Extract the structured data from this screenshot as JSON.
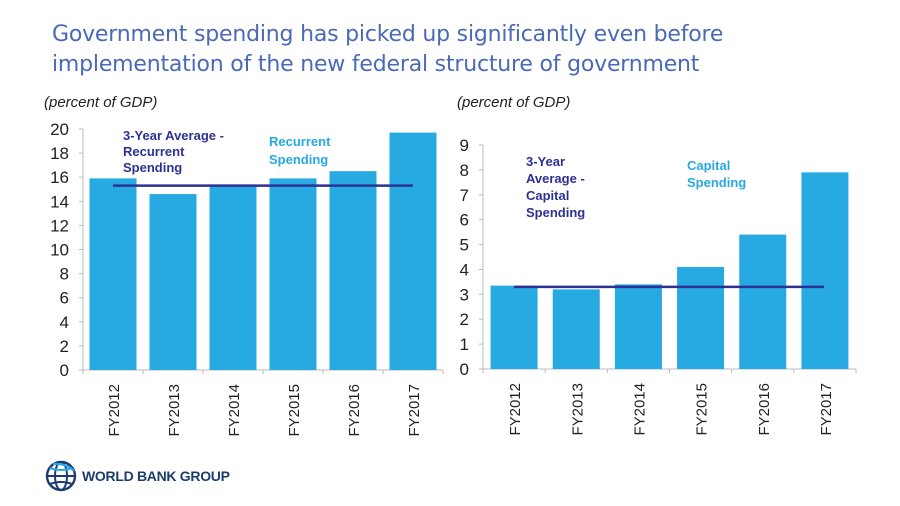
{
  "title": {
    "line1": "Government spending has picked up significantly even before",
    "line2": "implementation of the new federal structure of government"
  },
  "colors": {
    "bar": "#27a9e1",
    "average_line": "#2e3192",
    "title": "#4a69b7",
    "axis": "#bbbbbb"
  },
  "logo": {
    "icon": "globe-icon",
    "text": "WORLD BANK GROUP"
  },
  "chart_data": [
    {
      "type": "bar",
      "title": "",
      "unit_label": "(percent of GDP)",
      "xlabel": "",
      "ylabel": "",
      "categories": [
        "FY2012",
        "FY2013",
        "FY2014",
        "FY2015",
        "FY2016",
        "FY2017"
      ],
      "series": [
        {
          "name": "Recurrent Spending",
          "values": [
            15.9,
            14.6,
            15.4,
            15.9,
            16.5,
            19.7
          ]
        }
      ],
      "reference_lines": [
        {
          "name": "3-Year Average - Recurrent Spending",
          "value": 15.3,
          "label_lines": [
            "3-Year Average -",
            "Recurrent",
            "Spending"
          ]
        }
      ],
      "annotations": [
        {
          "text_lines": [
            "Recurrent",
            "Spending"
          ],
          "refers_to": "series"
        }
      ],
      "ylim": [
        0,
        20
      ],
      "yticks": [
        "0",
        "2",
        "4",
        "6",
        "8",
        "10",
        "12",
        "14",
        "16",
        "18",
        "20"
      ],
      "grid": false,
      "legend": "none"
    },
    {
      "type": "bar",
      "title": "",
      "unit_label": "(percent of GDP)",
      "xlabel": "",
      "ylabel": "",
      "categories": [
        "FY2012",
        "FY2013",
        "FY2014",
        "FY2015",
        "FY2016",
        "FY2017"
      ],
      "series": [
        {
          "name": "Capital Spending",
          "values": [
            3.35,
            3.2,
            3.4,
            4.1,
            5.4,
            7.9
          ]
        }
      ],
      "reference_lines": [
        {
          "name": "3-Year Average - Capital Spending",
          "value": 3.3,
          "label_lines": [
            "3-Year",
            "Average -",
            "Capital",
            "Spending"
          ]
        }
      ],
      "annotations": [
        {
          "text_lines": [
            "Capital",
            "Spending"
          ],
          "refers_to": "series"
        }
      ],
      "ylim": [
        0,
        9
      ],
      "yticks": [
        "0",
        "1",
        "2",
        "3",
        "4",
        "5",
        "6",
        "7",
        "8",
        "9"
      ],
      "grid": false,
      "legend": "none"
    }
  ]
}
